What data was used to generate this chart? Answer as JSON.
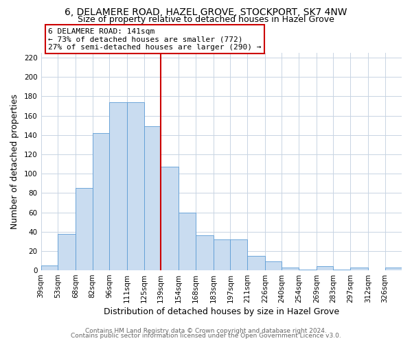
{
  "title": "6, DELAMERE ROAD, HAZEL GROVE, STOCKPORT, SK7 4NW",
  "subtitle": "Size of property relative to detached houses in Hazel Grove",
  "xlabel": "Distribution of detached houses by size in Hazel Grove",
  "ylabel": "Number of detached properties",
  "bar_labels": [
    "39sqm",
    "53sqm",
    "68sqm",
    "82sqm",
    "96sqm",
    "111sqm",
    "125sqm",
    "139sqm",
    "154sqm",
    "168sqm",
    "183sqm",
    "197sqm",
    "211sqm",
    "226sqm",
    "240sqm",
    "254sqm",
    "269sqm",
    "283sqm",
    "297sqm",
    "312sqm",
    "326sqm"
  ],
  "bar_heights": [
    5,
    38,
    85,
    142,
    174,
    174,
    149,
    107,
    60,
    36,
    32,
    32,
    15,
    9,
    3,
    1,
    4,
    1,
    3,
    0,
    3
  ],
  "bin_edges": [
    39,
    53,
    68,
    82,
    96,
    111,
    125,
    139,
    154,
    168,
    183,
    197,
    211,
    226,
    240,
    254,
    269,
    283,
    297,
    312,
    326,
    340
  ],
  "bar_color": "#c9dcf0",
  "bar_edge_color": "#5b9bd5",
  "vline_x": 139,
  "vline_color": "#cc0000",
  "annotation_line1": "6 DELAMERE ROAD: 141sqm",
  "annotation_line2": "← 73% of detached houses are smaller (772)",
  "annotation_line3": "27% of semi-detached houses are larger (290) →",
  "annotation_box_color": "#ffffff",
  "annotation_box_edge": "#cc0000",
  "ylim": [
    0,
    225
  ],
  "yticks": [
    0,
    20,
    40,
    60,
    80,
    100,
    120,
    140,
    160,
    180,
    200,
    220
  ],
  "footer1": "Contains HM Land Registry data © Crown copyright and database right 2024.",
  "footer2": "Contains public sector information licensed under the Open Government Licence v3.0.",
  "background_color": "#ffffff",
  "grid_color": "#c8d4e3",
  "title_fontsize": 10,
  "subtitle_fontsize": 9,
  "axis_label_fontsize": 9,
  "tick_fontsize": 7.5,
  "annotation_fontsize": 8,
  "footer_fontsize": 6.5
}
